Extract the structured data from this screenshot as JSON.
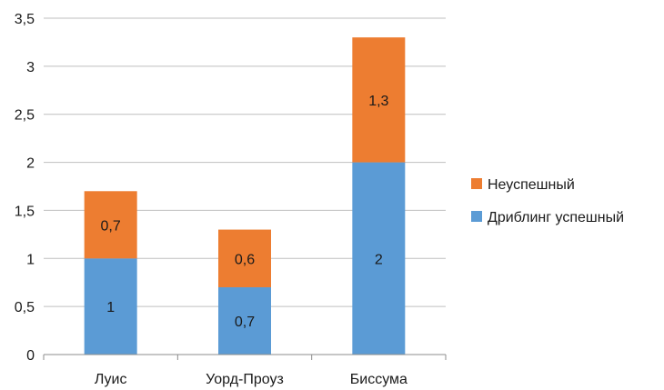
{
  "chart_data": {
    "type": "bar",
    "stacked": true,
    "title": "",
    "xlabel": "",
    "ylabel": "",
    "categories": [
      "Луис",
      "Уорд-Проуз",
      "Биссума"
    ],
    "series": [
      {
        "name": "Дриблинг успешный",
        "color": "#5b9bd5",
        "values": [
          1,
          0.7,
          2
        ],
        "labels": [
          "1",
          "0,7",
          "2"
        ]
      },
      {
        "name": "Неуспешный",
        "color": "#ed7d31",
        "values": [
          0.7,
          0.6,
          1.3
        ],
        "labels": [
          "0,7",
          "0,6",
          "1,3"
        ]
      }
    ],
    "ylim": [
      0,
      3.5
    ],
    "yticks": [
      0,
      0.5,
      1,
      1.5,
      2,
      2.5,
      3,
      3.5
    ],
    "ytick_labels": [
      "0",
      "0,5",
      "1",
      "1,5",
      "2",
      "2,5",
      "3",
      "3,5"
    ],
    "grid": true,
    "legend_position": "right",
    "legend_order": [
      "Неуспешный",
      "Дриблинг успешный"
    ],
    "colors": {
      "grid": "#bfbfbf",
      "axis": "#8c8c8c",
      "text": "#1a1a1a"
    }
  }
}
